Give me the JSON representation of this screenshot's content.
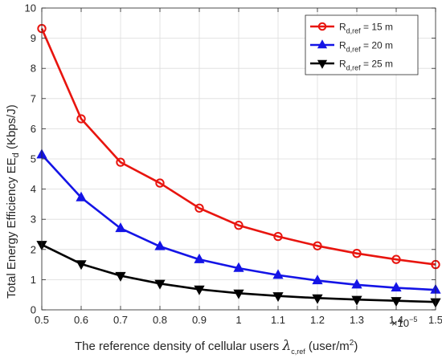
{
  "chart_data": {
    "type": "line",
    "xlabel_main": "The reference density of cellular users ",
    "xlabel_symbol": "λ",
    "xlabel_symbol_sub": "c,ref",
    "xlabel_unit": " (user/m",
    "xlabel_unit_sup": "2",
    "xlabel_unit_close": ")",
    "x_exponent_base": "×10",
    "x_exponent": "−5",
    "ylabel_main": "Total Energy Efficiency EE",
    "ylabel_sub": "d",
    "ylabel_unit": " (Kbps/J)",
    "xlim": [
      0.5,
      1.5
    ],
    "ylim": [
      0,
      10
    ],
    "xticks": [
      "0.5",
      "0.6",
      "0.7",
      "0.8",
      "0.9",
      "1",
      "1.1",
      "1.2",
      "1.3",
      "1.4",
      "1.5"
    ],
    "yticks": [
      "0",
      "1",
      "2",
      "3",
      "4",
      "5",
      "6",
      "7",
      "8",
      "9",
      "10"
    ],
    "grid": true,
    "legend_position": "top-right",
    "x": [
      0.5,
      0.6,
      0.7,
      0.8,
      0.9,
      1.0,
      1.1,
      1.2,
      1.3,
      1.4,
      1.5
    ],
    "series": [
      {
        "legend_prefix": "R",
        "legend_sub": "d,ref",
        "legend_suffix": " = 15 m",
        "color": "#e8150f",
        "marker": "circle",
        "values": [
          9.32,
          6.33,
          4.89,
          4.2,
          3.37,
          2.8,
          2.43,
          2.12,
          1.87,
          1.67,
          1.5
        ]
      },
      {
        "legend_prefix": "R",
        "legend_sub": "d,ref",
        "legend_suffix": " = 20 m",
        "color": "#1414e6",
        "marker": "triangle-up",
        "values": [
          5.14,
          3.72,
          2.7,
          2.1,
          1.67,
          1.38,
          1.15,
          0.97,
          0.83,
          0.73,
          0.66
        ]
      },
      {
        "legend_prefix": "R",
        "legend_sub": "d,ref",
        "legend_suffix": " = 25 m",
        "color": "#000000",
        "marker": "triangle-down",
        "values": [
          2.16,
          1.52,
          1.13,
          0.87,
          0.68,
          0.55,
          0.46,
          0.39,
          0.34,
          0.3,
          0.26
        ]
      }
    ]
  }
}
